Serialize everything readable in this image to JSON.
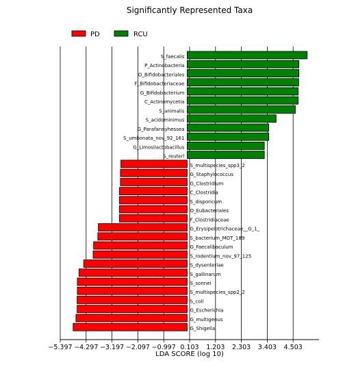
{
  "chart_data": {
    "type": "bar",
    "orientation": "horizontal",
    "title": "Significantly Represented Taxa",
    "xlabel": "LDA SCORE (log 10)",
    "ylabel": "",
    "xlim": [
      -5.397,
      5.603
    ],
    "xticks": [
      -5.397,
      -4.297,
      -3.197,
      -2.097,
      -0.997,
      0.103,
      1.203,
      2.303,
      3.403,
      4.503
    ],
    "xtick_labels": [
      "−5.397",
      "−4.297",
      "−3.197",
      "−2.097",
      "−0.997",
      "0.103",
      "1.203",
      "2.303",
      "3.403",
      "4.503"
    ],
    "grid": "vertical",
    "legend_position": "top-left",
    "legend": [
      {
        "name": "PD",
        "color": "#ff0000"
      },
      {
        "name": "RCU",
        "color": "#008000"
      }
    ],
    "series": [
      {
        "name": "RCU",
        "color": "#008000",
        "categories": [
          "S_faecalis",
          "P_Actinobacteria",
          "O_Bifidobacteriales",
          "F_Bifidobacteriaceae",
          "G_Bifidobacterium",
          "C_Actinomycetia",
          "S_animalis",
          "S_acidominimus",
          "G_Parafannyhessea",
          "S_umbonata_nov_92_161",
          "G_Limosilactobacillus",
          "S_reuteri"
        ],
        "values": [
          5.1,
          4.75,
          4.75,
          4.74,
          4.72,
          4.72,
          4.6,
          3.78,
          3.47,
          3.47,
          3.28,
          3.28
        ]
      },
      {
        "name": "PD",
        "color": "#ff0000",
        "categories": [
          "S_multispecies_spp3_2",
          "G_Staphylococcus",
          "G_Clostridium",
          "C_Clostridia",
          "S_disporicum",
          "O_Eubacteriales",
          "F_Clostridiaceae",
          "G_Erysipelotrichaceae__G_1_",
          "S_bacterium_MOT_189",
          "G_Faecalibaculum",
          "S_rodentium_nov_97_125",
          "S_dysenteriae",
          "S_gallinarum",
          "S_sonnei",
          "S_multispecies_spp2_2",
          "S_coli",
          "G_Escherichia",
          "G_multigenus",
          "G_Shigella"
        ],
        "values": [
          -2.82,
          -2.84,
          -2.84,
          -2.88,
          -2.88,
          -2.88,
          -2.88,
          -3.78,
          -3.8,
          -3.98,
          -4.0,
          -4.4,
          -4.6,
          -4.67,
          -4.67,
          -4.68,
          -4.68,
          -4.73,
          -4.85
        ]
      }
    ]
  }
}
